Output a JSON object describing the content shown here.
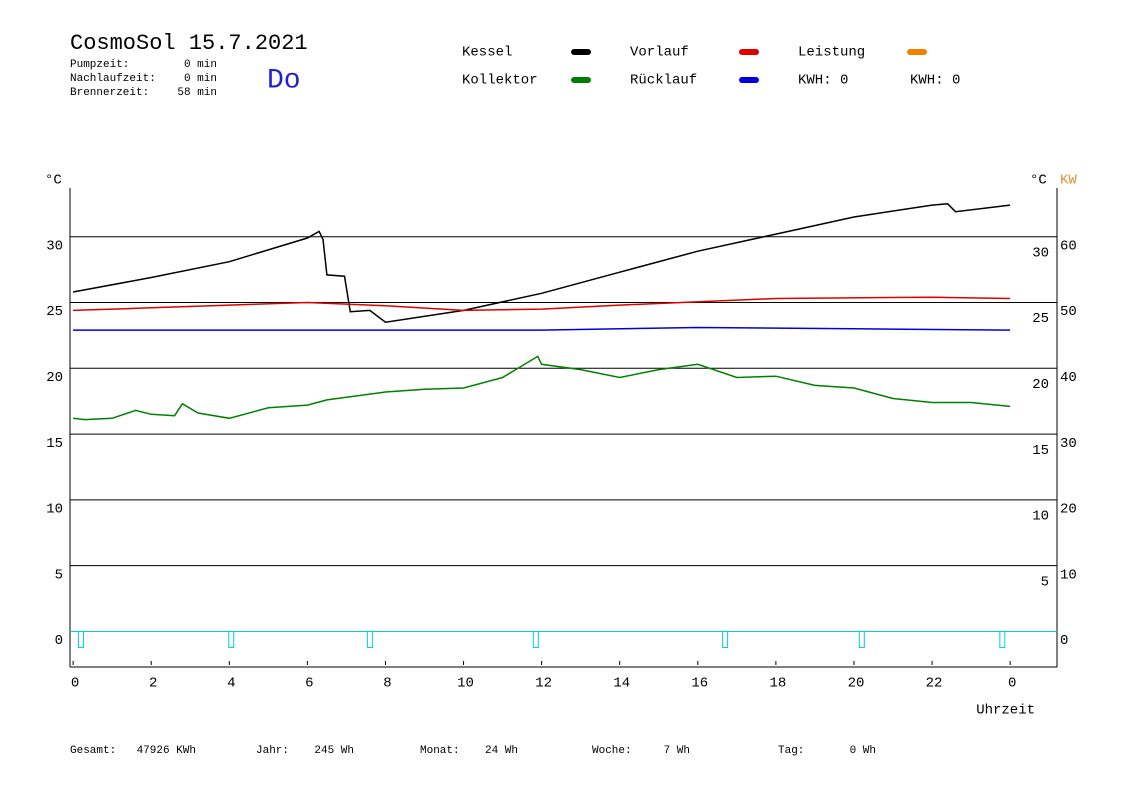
{
  "chart_data": {
    "type": "line",
    "title": "CosmoSol 15.7.2021",
    "weekday": "Do",
    "info": [
      [
        "Pumpzeit:",
        "0 min"
      ],
      [
        "Nachlaufzeit:",
        "0 min"
      ],
      [
        "Brennerzeit:",
        "58 min"
      ]
    ],
    "ylabel": "°C",
    "y2label_unit": "°C",
    "y2label": "KW",
    "xlabel": "Uhrzeit",
    "xlim": [
      -0.08,
      25.2
    ],
    "xticks": [
      0,
      2,
      4,
      6,
      8,
      10,
      12,
      14,
      16,
      18,
      20,
      22,
      {
        "value": 24,
        "label": "0"
      }
    ],
    "ylim": [
      -2.7,
      33.7
    ],
    "yticks": [
      0,
      5,
      10,
      15,
      20,
      25,
      30
    ],
    "yticks_right": [
      5,
      10,
      15,
      20,
      25,
      30
    ],
    "y2lim": [
      -5.4,
      67.4
    ],
    "y2ticks": [
      0,
      10,
      20,
      30,
      40,
      50,
      60
    ],
    "grid": true,
    "series": [
      {
        "name": "Kessel",
        "color": "#000000",
        "x": [
          0,
          2,
          4,
          6,
          6.3,
          6.4,
          6.5,
          6.95,
          7.1,
          7.6,
          8,
          10,
          12,
          14,
          16,
          18,
          20,
          22,
          22.4,
          22.6,
          24
        ],
        "values": [
          25.8,
          26.9,
          28.1,
          29.9,
          30.4,
          29.8,
          27.1,
          27.0,
          24.3,
          24.4,
          23.5,
          24.4,
          25.7,
          27.3,
          28.9,
          30.2,
          31.5,
          32.4,
          32.5,
          31.9,
          32.4
        ]
      },
      {
        "name": "Kollektor",
        "color": "#008000",
        "x": [
          0,
          0.3,
          1,
          1.6,
          2,
          2.6,
          2.8,
          3.2,
          4,
          5,
          6,
          6.5,
          7,
          8,
          9,
          10,
          11,
          11.9,
          12,
          13,
          14,
          15,
          16,
          17,
          18,
          19,
          20,
          21,
          22,
          23,
          24
        ],
        "values": [
          16.2,
          16.1,
          16.2,
          16.8,
          16.5,
          16.4,
          17.3,
          16.6,
          16.2,
          17.0,
          17.2,
          17.6,
          17.8,
          18.2,
          18.4,
          18.5,
          19.3,
          20.9,
          20.3,
          19.9,
          19.3,
          19.9,
          20.3,
          19.3,
          19.4,
          18.7,
          18.5,
          17.7,
          17.4,
          17.4,
          17.1
        ]
      },
      {
        "name": "Vorlauf",
        "color": "#e00000",
        "x": [
          0,
          2,
          4,
          6,
          8,
          10,
          12,
          14,
          18,
          22,
          24
        ],
        "values": [
          24.4,
          24.6,
          24.8,
          25.0,
          24.75,
          24.4,
          24.5,
          24.8,
          25.3,
          25.4,
          25.3
        ]
      },
      {
        "name": "Rücklauf",
        "color": "#0000e0",
        "x": [
          0,
          8,
          12,
          16,
          20,
          24
        ],
        "values": [
          22.9,
          22.9,
          22.9,
          23.1,
          23.0,
          22.9
        ]
      },
      {
        "name": "Leistung",
        "color": "#f08000",
        "x": [],
        "values": []
      }
    ],
    "kwh_labels": [
      {
        "text": "KWH: 0",
        "color": "#e09030"
      },
      {
        "text": "KWH: 0",
        "color": "#8030a0"
      }
    ],
    "pulses": [
      0.2,
      4.05,
      7.6,
      11.85,
      16.7,
      20.2,
      23.8
    ],
    "pulse_color": "#00d0d0",
    "footer": [
      [
        "Gesamt:",
        "47926 KWh"
      ],
      [
        "Jahr:",
        "245 Wh"
      ],
      [
        "Monat:",
        "24 Wh"
      ],
      [
        "Woche:",
        "7 Wh"
      ],
      [
        "Tag:",
        "0 Wh"
      ]
    ]
  }
}
